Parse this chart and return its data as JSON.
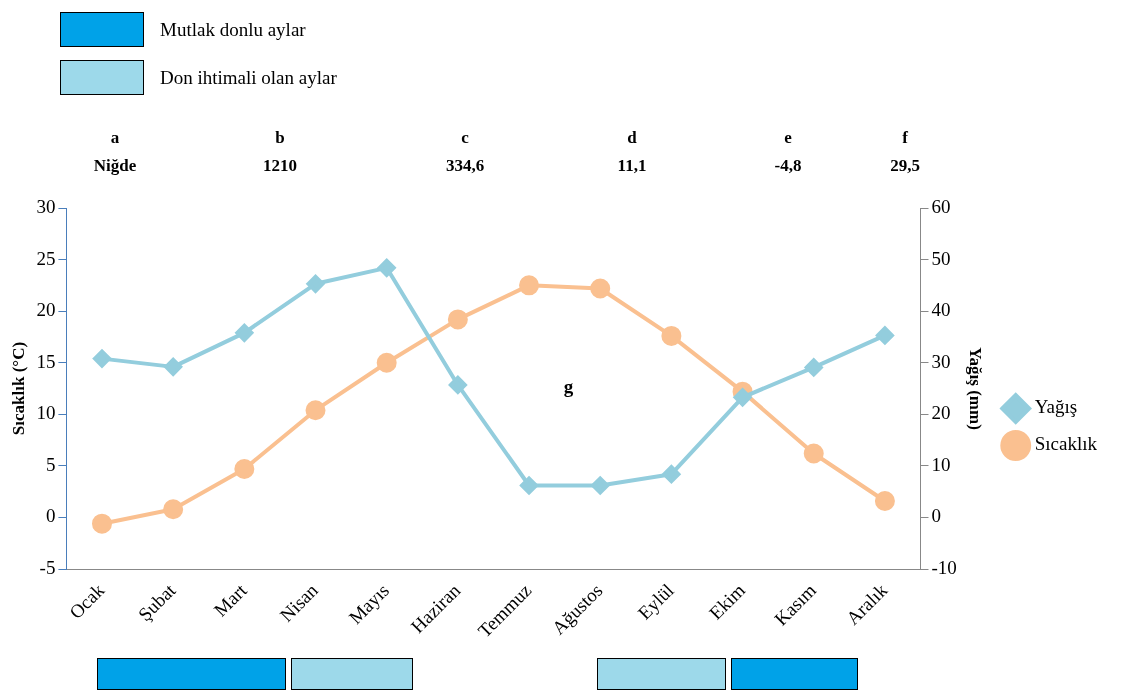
{
  "chart_data": {
    "type": "line",
    "categories": [
      "Ocak",
      "Şubat",
      "Mart",
      "Nisan",
      "Mayıs",
      "Haziran",
      "Temmuz",
      "Ağustos",
      "Eylül",
      "Ekim",
      "Kasım",
      "Aralık"
    ],
    "series": [
      {
        "name": "Sıcaklık",
        "color": "#fac090",
        "marker": "circle",
        "values": [
          -0.6,
          0.8,
          4.7,
          10.4,
          15.0,
          19.2,
          22.5,
          22.2,
          17.6,
          12.2,
          6.2,
          1.6
        ]
      },
      {
        "name": "Yağış",
        "color": "#93cddd",
        "marker": "diamond",
        "axis": "y2",
        "values": [
          30.8,
          29.2,
          35.8,
          45.3,
          48.4,
          25.7,
          6.2,
          6.2,
          8.4,
          23.3,
          29.1,
          35.3
        ]
      }
    ],
    "ylabel": "Sıcaklık (°C)",
    "y2label": "Yağış (mm)",
    "ylim": [
      -5,
      30
    ],
    "yticks": [
      -5,
      0,
      5,
      10,
      15,
      20,
      25,
      30
    ],
    "y2lim": [
      -10,
      60
    ],
    "y2ticks": [
      -10,
      0,
      10,
      20,
      30,
      40,
      50,
      60
    ],
    "annotations": [
      "Mutlak donlu aylar",
      "Don ihtimali olan aylar",
      "a",
      "b",
      "c",
      "d",
      "e",
      "f",
      "Niğde",
      "1210",
      "334,6",
      "11,1",
      "-4,8",
      "29,5",
      "g"
    ],
    "legend": "right",
    "grid": false
  }
}
